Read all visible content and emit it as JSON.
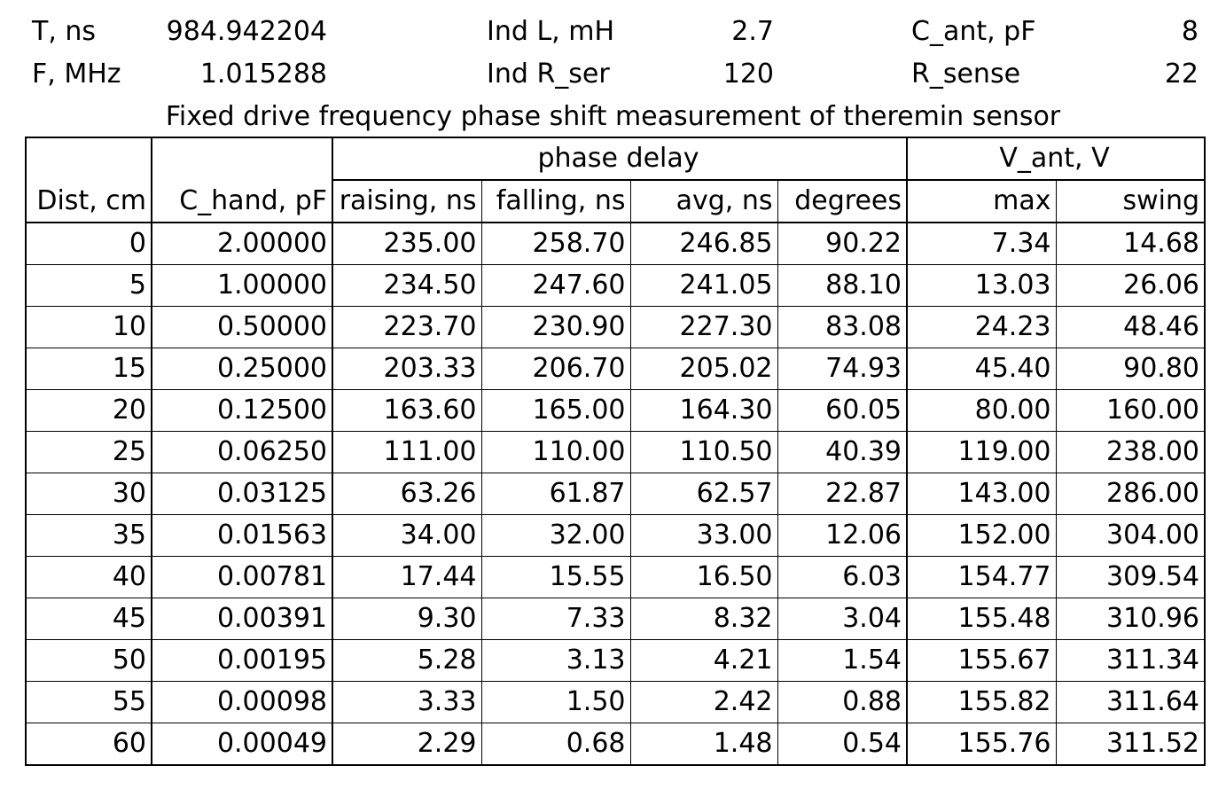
{
  "params": {
    "t_label": "T, ns",
    "t_value": "984.942204",
    "f_label": "F, MHz",
    "f_value": "1.015288",
    "ind_l_label": "Ind L, mH",
    "ind_l_value": "2.7",
    "ind_r_label": "Ind R_ser",
    "ind_r_value": "120",
    "c_ant_label": "C_ant, pF",
    "c_ant_value": "8",
    "r_sense_label": "R_sense",
    "r_sense_value": "22"
  },
  "title": "Fixed drive frequency phase shift measurement of theremin sensor",
  "table": {
    "group_phase": "phase delay",
    "group_vant": "V_ant, V",
    "columns": [
      "Dist, cm",
      "C_hand, pF",
      "raising, ns",
      "falling, ns",
      "avg, ns",
      "degrees",
      "max",
      "swing"
    ],
    "rows": [
      [
        "0",
        "2.00000",
        "235.00",
        "258.70",
        "246.85",
        "90.22",
        "7.34",
        "14.68"
      ],
      [
        "5",
        "1.00000",
        "234.50",
        "247.60",
        "241.05",
        "88.10",
        "13.03",
        "26.06"
      ],
      [
        "10",
        "0.50000",
        "223.70",
        "230.90",
        "227.30",
        "83.08",
        "24.23",
        "48.46"
      ],
      [
        "15",
        "0.25000",
        "203.33",
        "206.70",
        "205.02",
        "74.93",
        "45.40",
        "90.80"
      ],
      [
        "20",
        "0.12500",
        "163.60",
        "165.00",
        "164.30",
        "60.05",
        "80.00",
        "160.00"
      ],
      [
        "25",
        "0.06250",
        "111.00",
        "110.00",
        "110.50",
        "40.39",
        "119.00",
        "238.00"
      ],
      [
        "30",
        "0.03125",
        "63.26",
        "61.87",
        "62.57",
        "22.87",
        "143.00",
        "286.00"
      ],
      [
        "35",
        "0.01563",
        "34.00",
        "32.00",
        "33.00",
        "12.06",
        "152.00",
        "304.00"
      ],
      [
        "40",
        "0.00781",
        "17.44",
        "15.55",
        "16.50",
        "6.03",
        "154.77",
        "309.54"
      ],
      [
        "45",
        "0.00391",
        "9.30",
        "7.33",
        "8.32",
        "3.04",
        "155.48",
        "310.96"
      ],
      [
        "50",
        "0.00195",
        "5.28",
        "3.13",
        "4.21",
        "1.54",
        "155.67",
        "311.34"
      ],
      [
        "55",
        "0.00098",
        "3.33",
        "1.50",
        "2.42",
        "0.88",
        "155.82",
        "311.64"
      ],
      [
        "60",
        "0.00049",
        "2.29",
        "0.68",
        "1.48",
        "0.54",
        "155.76",
        "311.52"
      ]
    ]
  }
}
